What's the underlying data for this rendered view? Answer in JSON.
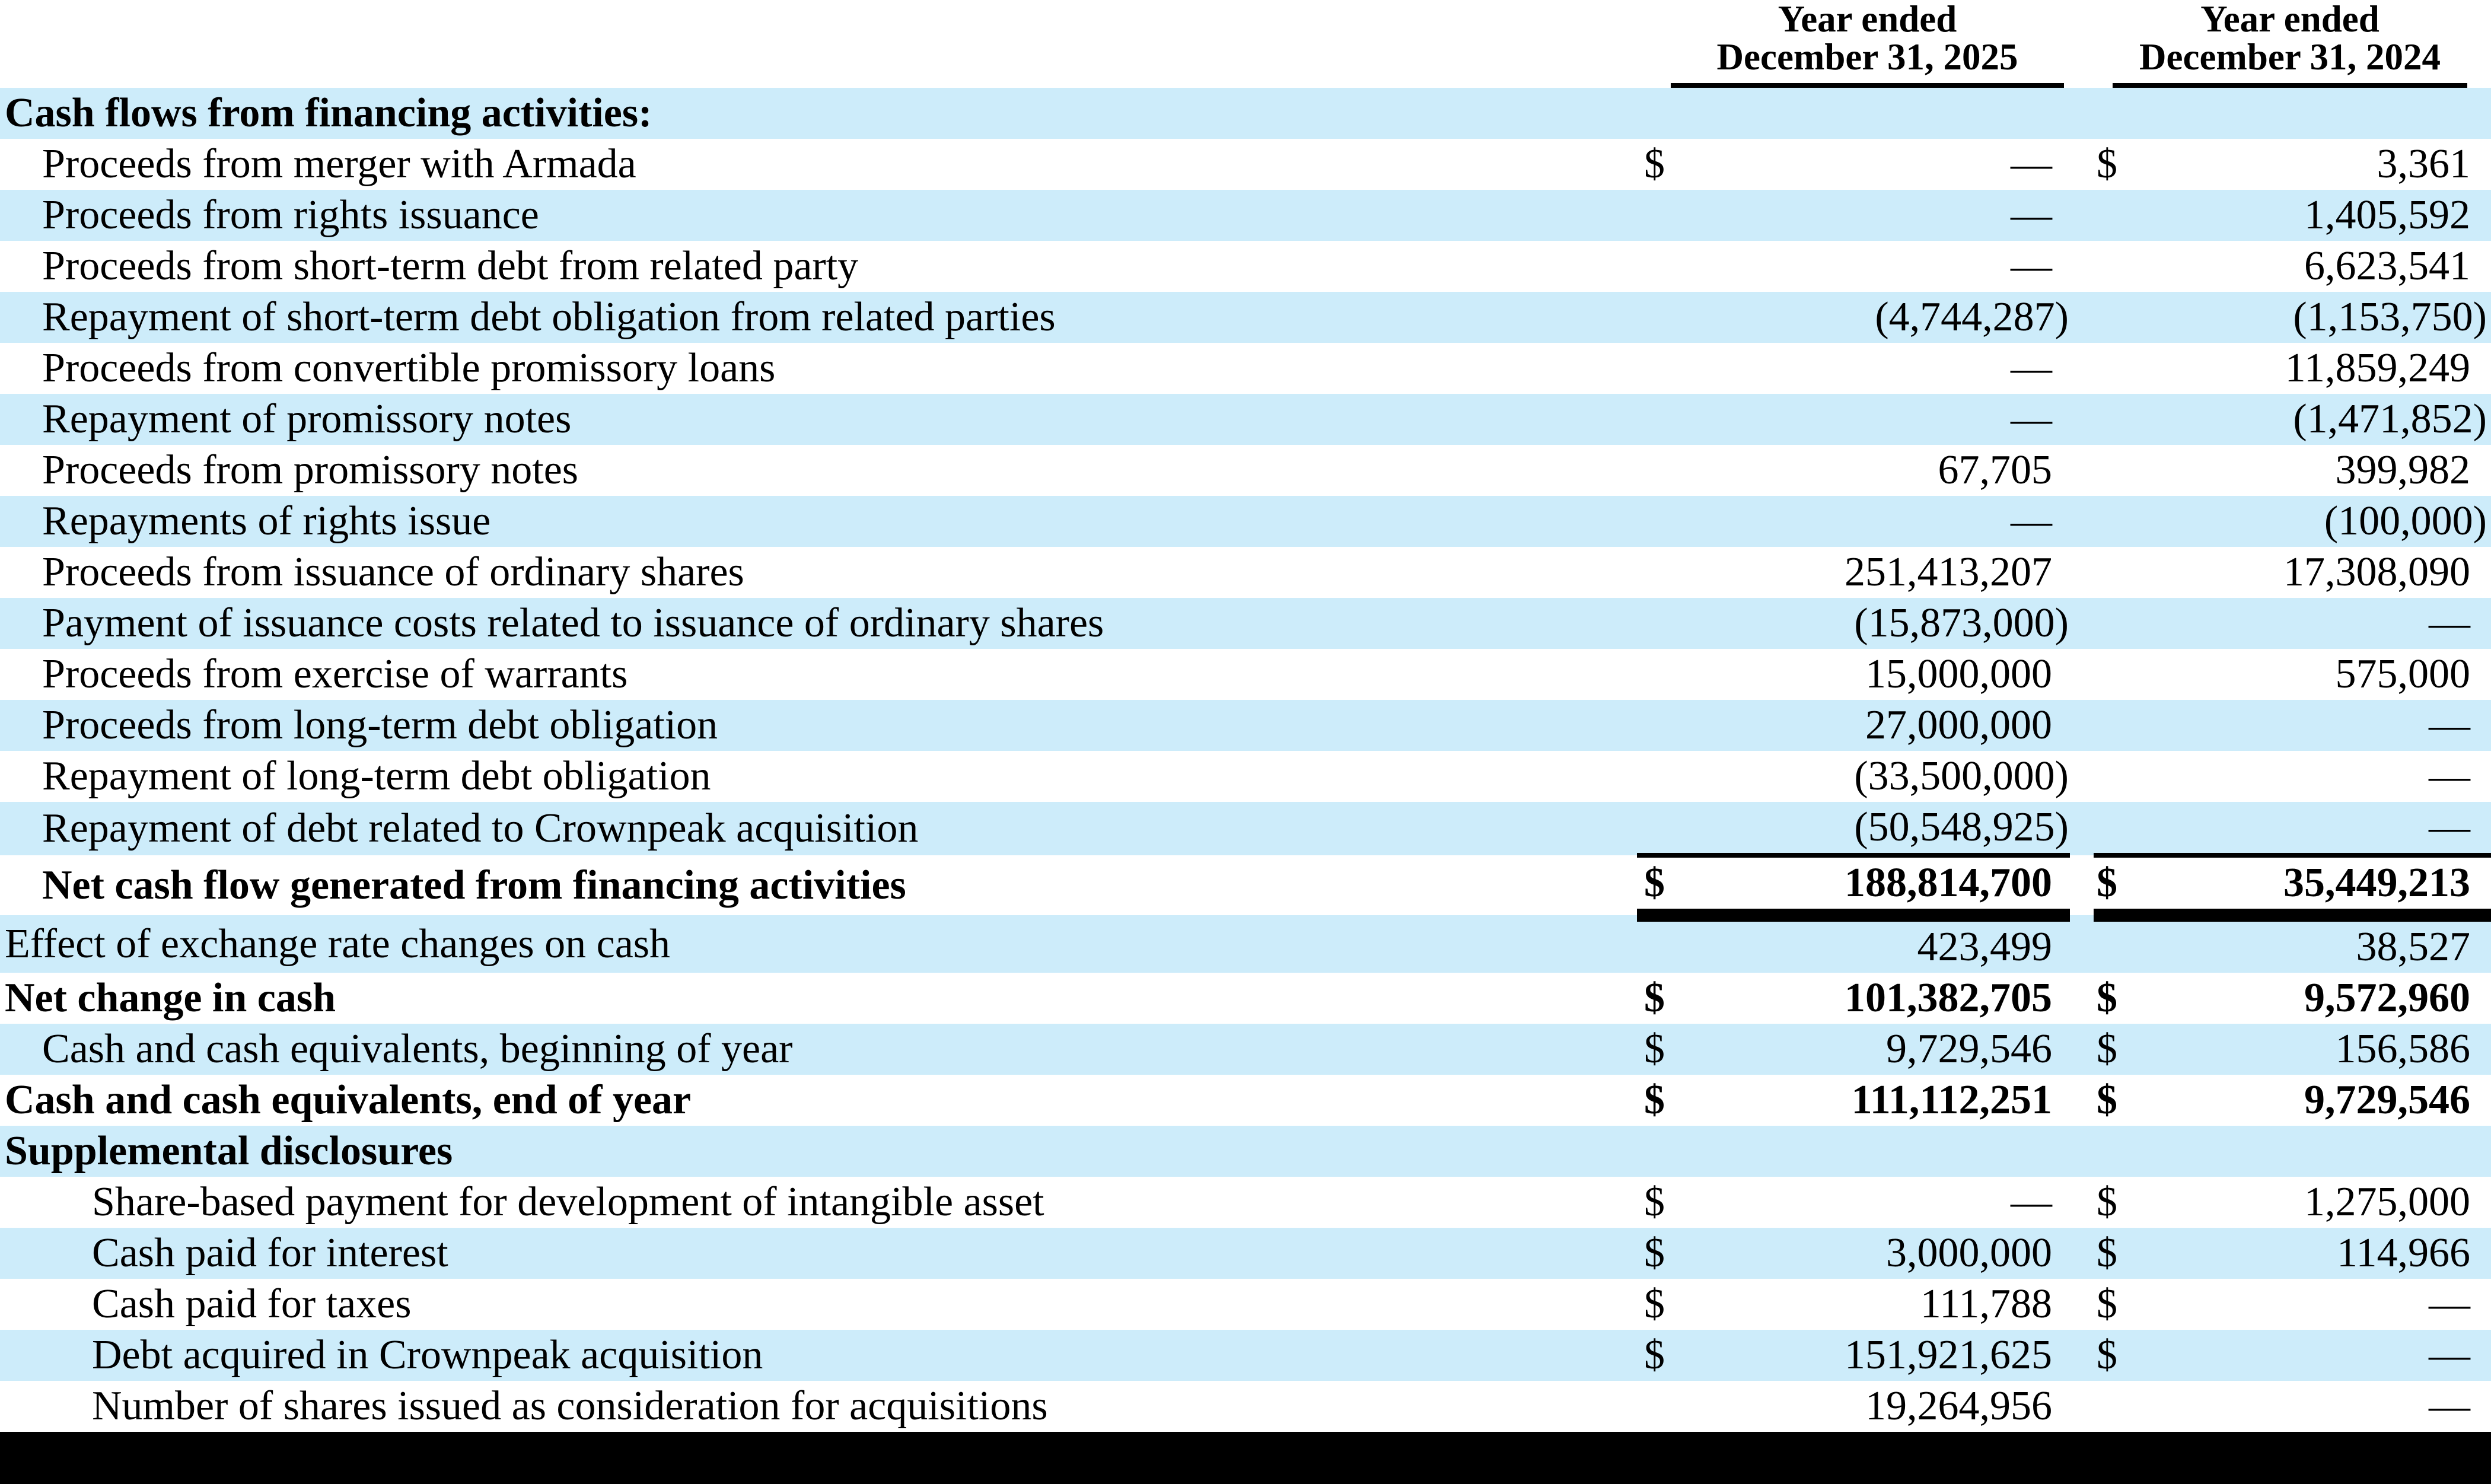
{
  "table": {
    "header": {
      "col1_line1": "Year ended",
      "col1_line2": "December 31, 2025",
      "col2_line1": "Year ended",
      "col2_line2": "December 31, 2024"
    },
    "rows": [
      {
        "label": "Cash flows from financing activities:",
        "indent": 0,
        "bold": true,
        "d1": "",
        "v1": "",
        "d2": "",
        "v2": "",
        "rule": ""
      },
      {
        "label": "Proceeds from merger with Armada",
        "indent": 1,
        "bold": false,
        "d1": "$",
        "v1": "—",
        "d2": "$",
        "v2": "3,361",
        "rule": ""
      },
      {
        "label": "Proceeds from rights issuance",
        "indent": 1,
        "bold": false,
        "d1": "",
        "v1": "—",
        "d2": "",
        "v2": "1,405,592",
        "rule": ""
      },
      {
        "label": "Proceeds from short-term debt from related party",
        "indent": 1,
        "bold": false,
        "d1": "",
        "v1": "—",
        "d2": "",
        "v2": "6,623,541",
        "rule": ""
      },
      {
        "label": "Repayment of short-term debt obligation from related parties",
        "indent": 1,
        "bold": false,
        "d1": "",
        "v1": "(4,744,287)",
        "d2": "",
        "v2": "(1,153,750)",
        "rule": ""
      },
      {
        "label": "Proceeds from convertible promissory loans",
        "indent": 1,
        "bold": false,
        "d1": "",
        "v1": "—",
        "d2": "",
        "v2": "11,859,249",
        "rule": ""
      },
      {
        "label": "Repayment of promissory notes",
        "indent": 1,
        "bold": false,
        "d1": "",
        "v1": "—",
        "d2": "",
        "v2": "(1,471,852)",
        "rule": ""
      },
      {
        "label": "Proceeds from promissory notes",
        "indent": 1,
        "bold": false,
        "d1": "",
        "v1": "67,705",
        "d2": "",
        "v2": "399,982",
        "rule": ""
      },
      {
        "label": "Repayments of rights issue",
        "indent": 1,
        "bold": false,
        "d1": "",
        "v1": "—",
        "d2": "",
        "v2": "(100,000)",
        "rule": ""
      },
      {
        "label": "Proceeds from issuance of ordinary shares",
        "indent": 1,
        "bold": false,
        "d1": "",
        "v1": "251,413,207",
        "d2": "",
        "v2": "17,308,090",
        "rule": ""
      },
      {
        "label": "Payment of issuance costs related to issuance of ordinary shares",
        "indent": 1,
        "bold": false,
        "d1": "",
        "v1": "(15,873,000)",
        "d2": "",
        "v2": "—",
        "rule": ""
      },
      {
        "label": "Proceeds from exercise of warrants",
        "indent": 1,
        "bold": false,
        "d1": "",
        "v1": "15,000,000",
        "d2": "",
        "v2": "575,000",
        "rule": ""
      },
      {
        "label": "Proceeds from long-term debt obligation",
        "indent": 1,
        "bold": false,
        "d1": "",
        "v1": "27,000,000",
        "d2": "",
        "v2": "—",
        "rule": ""
      },
      {
        "label": "Repayment of long-term debt obligation",
        "indent": 1,
        "bold": false,
        "d1": "",
        "v1": "(33,500,000)",
        "d2": "",
        "v2": "—",
        "rule": ""
      },
      {
        "label": "Repayment of debt related to Crownpeak acquisition",
        "indent": 1,
        "bold": false,
        "d1": "",
        "v1": "(50,548,925)",
        "d2": "",
        "v2": "—",
        "rule": "thin"
      },
      {
        "label": "Net cash flow generated from financing activities",
        "indent": 1,
        "bold": true,
        "d1": "$",
        "v1": "188,814,700",
        "d2": "$",
        "v2": "35,449,213",
        "rule": "thick"
      },
      {
        "label": "Effect of exchange rate changes on cash",
        "indent": 0,
        "bold": false,
        "d1": "",
        "v1": "423,499",
        "d2": "",
        "v2": "38,527",
        "rule": ""
      },
      {
        "label": "Net change in cash",
        "indent": 0,
        "bold": true,
        "d1": "$",
        "v1": "101,382,705",
        "d2": "$",
        "v2": "9,572,960",
        "rule": ""
      },
      {
        "label": "Cash and cash equivalents, beginning of year",
        "indent": 1,
        "bold": false,
        "d1": "$",
        "v1": "9,729,546",
        "d2": "$",
        "v2": "156,586",
        "rule": ""
      },
      {
        "label": "Cash and cash equivalents, end of year",
        "indent": 0,
        "bold": true,
        "d1": "$",
        "v1": "111,112,251",
        "d2": "$",
        "v2": "9,729,546",
        "rule": ""
      },
      {
        "label": "Supplemental disclosures",
        "indent": 0,
        "bold": true,
        "d1": "",
        "v1": "",
        "d2": "",
        "v2": "",
        "rule": ""
      },
      {
        "label": "Share-based payment for development of intangible asset",
        "indent": 2,
        "bold": false,
        "d1": "$",
        "v1": "—",
        "d2": "$",
        "v2": "1,275,000",
        "rule": ""
      },
      {
        "label": "Cash paid for interest",
        "indent": 2,
        "bold": false,
        "d1": "$",
        "v1": "3,000,000",
        "d2": "$",
        "v2": "114,966",
        "rule": ""
      },
      {
        "label": "Cash paid for taxes",
        "indent": 2,
        "bold": false,
        "d1": "$",
        "v1": "111,788",
        "d2": "$",
        "v2": "—",
        "rule": ""
      },
      {
        "label": "Debt acquired in Crownpeak acquisition",
        "indent": 2,
        "bold": false,
        "d1": "$",
        "v1": "151,921,625",
        "d2": "$",
        "v2": "—",
        "rule": ""
      },
      {
        "label": "Number of shares issued as consideration for acquisitions",
        "indent": 2,
        "bold": false,
        "d1": "",
        "v1": "19,264,956",
        "d2": "",
        "v2": "—",
        "rule": ""
      }
    ]
  },
  "colors": {
    "row_stripe": "#cdecfa",
    "rule_black": "#000000",
    "footer_band": "#000000",
    "background": "#ffffff",
    "text": "#000000"
  }
}
